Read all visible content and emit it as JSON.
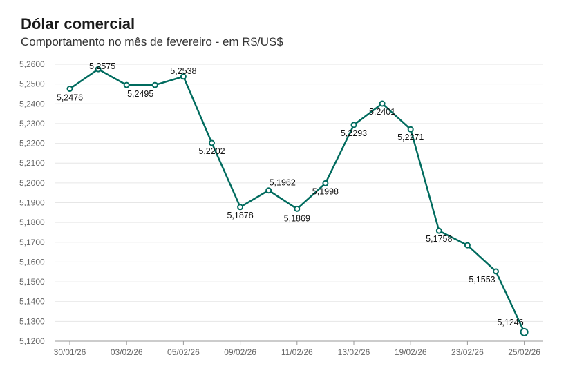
{
  "title": "Dólar comercial",
  "subtitle": "Comportamento no mês de fevereiro - em R$/US$",
  "chart_data": {
    "type": "line",
    "title": "Dólar comercial",
    "subtitle": "Comportamento no mês de fevereiro - em R$/US$",
    "xlabel": "",
    "ylabel": "",
    "ylim": [
      5.12,
      5.26
    ],
    "yticks": [
      5.12,
      5.13,
      5.14,
      5.15,
      5.16,
      5.17,
      5.18,
      5.19,
      5.2,
      5.21,
      5.22,
      5.23,
      5.24,
      5.25,
      5.26
    ],
    "ytick_labels": [
      "5,1200",
      "5,1300",
      "5,1400",
      "5,1500",
      "5,1600",
      "5,1700",
      "5,1800",
      "5,1900",
      "5,2000",
      "5,2100",
      "5,2200",
      "5,2300",
      "5,2400",
      "5,2500",
      "5,2600"
    ],
    "xtick_labels": [
      "30/01/26",
      "03/02/26",
      "05/02/26",
      "09/02/26",
      "11/02/26",
      "13/02/26",
      "19/02/26",
      "23/02/26",
      "25/02/26"
    ],
    "grid": true,
    "line_color": "#006b5e",
    "series": [
      {
        "values": [
          5.2476,
          5.2575,
          5.2495,
          5.2495,
          5.2538,
          5.2202,
          5.1878,
          5.1962,
          5.1869,
          5.1998,
          5.2293,
          5.2401,
          5.2271,
          5.1758,
          5.1685,
          5.1553,
          5.1246
        ],
        "labels": [
          "5,2476",
          "5,2575",
          "5,2495",
          "",
          "5,2538",
          "5,2202",
          "5,1878",
          "5,1962",
          "5,1869",
          "5,1998",
          "5,2293",
          "5,2401",
          "5,2271",
          "5,1758",
          "",
          "5,1553",
          "5,1246"
        ]
      }
    ]
  }
}
